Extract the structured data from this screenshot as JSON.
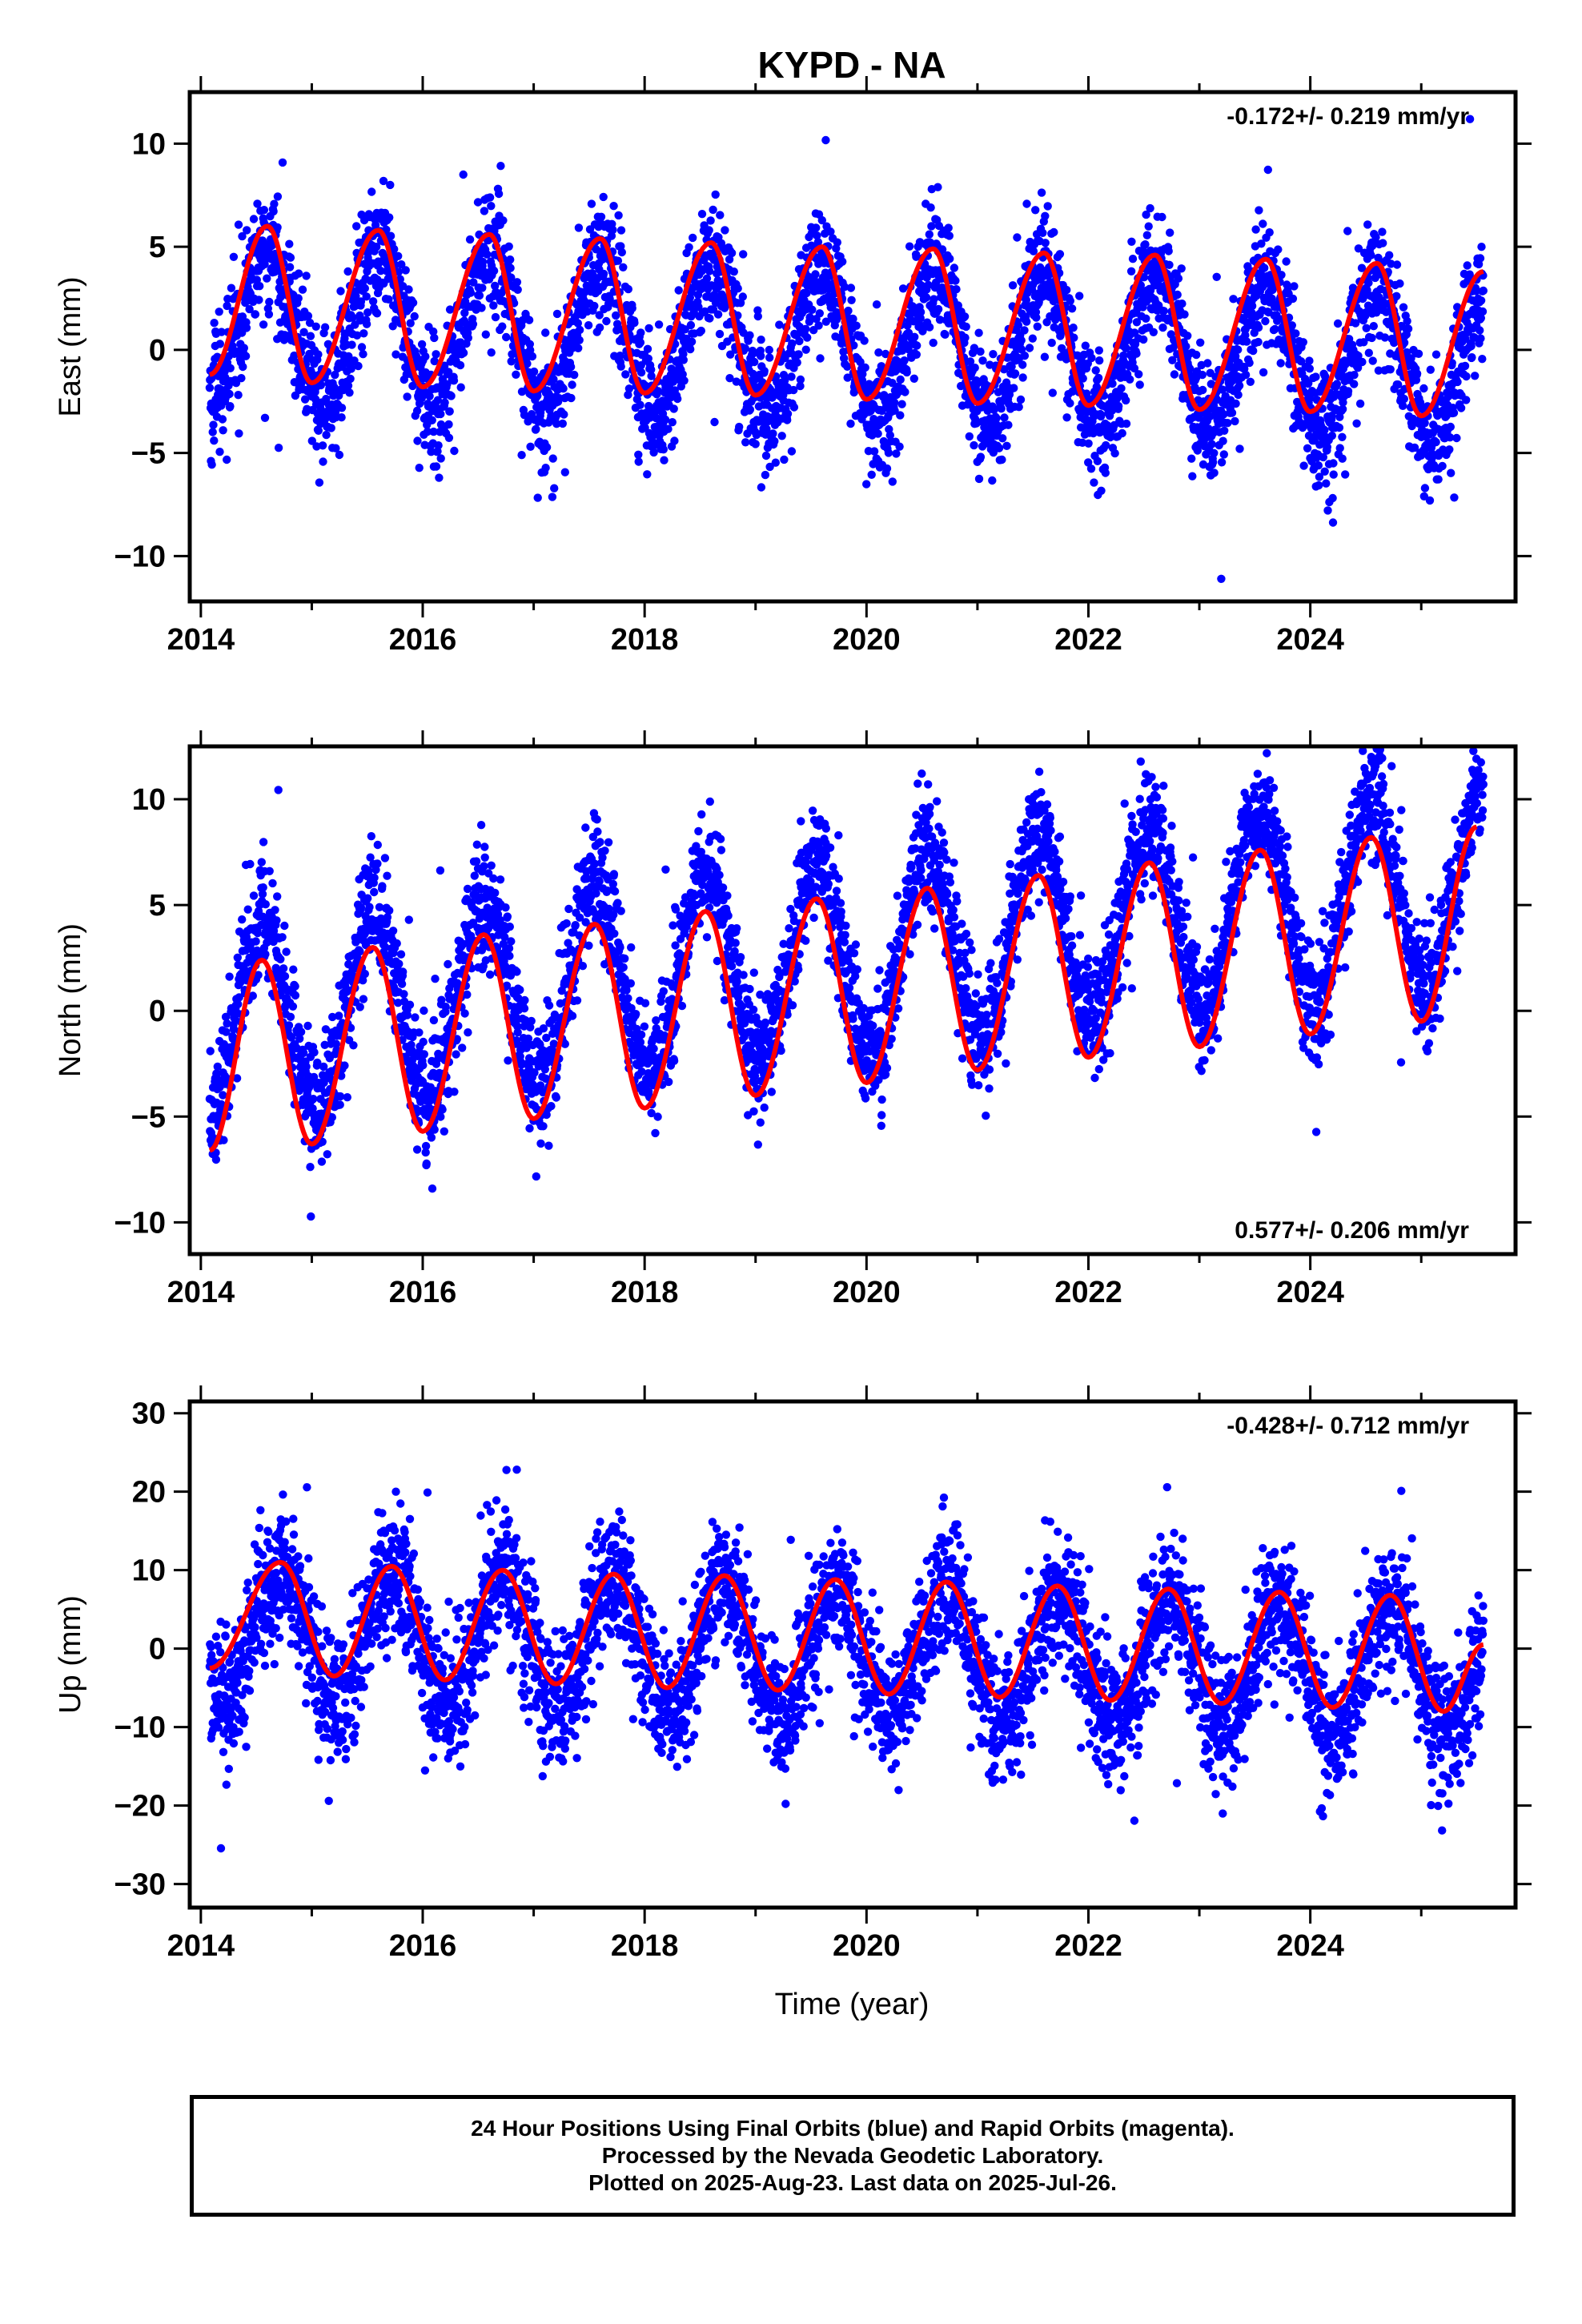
{
  "title": "KYPD - NA",
  "xlabel": "Time (year)",
  "colors": {
    "final_orbits": "#0000ff",
    "model_fit": "#ff0000",
    "frame": "#000000"
  },
  "footer": {
    "line1": "24 Hour Positions Using Final Orbits (blue) and Rapid Orbits (magenta).",
    "line2": "Processed by the Nevada Geodetic Laboratory.",
    "line3": "Plotted on 2025-Aug-23. Last data on 2025-Jul-26."
  },
  "chart_data": [
    {
      "type": "scatter",
      "name": "east",
      "ylabel": "East (mm)",
      "annotation": "-0.172+/- 0.219 mm/yr",
      "annotation_position": "top-right",
      "xlim": [
        2013.9,
        2025.85
      ],
      "ylim": [
        -12.2,
        12.5
      ],
      "xticks": [
        2014,
        2016,
        2018,
        2020,
        2022,
        2024
      ],
      "xtick_labels": [
        "2014",
        "2016",
        "2018",
        "2020",
        "2022",
        "2024"
      ],
      "yticks": [
        -10,
        -5,
        0,
        5,
        10
      ],
      "ytick_labels": [
        "−10",
        "−5",
        "0",
        "5",
        "10"
      ],
      "data_start": 2014.08,
      "data_end": 2025.56,
      "trend_mm_per_yr": -0.172,
      "fit": {
        "type": "line",
        "x": [
          2014.08,
          2014.6,
          2015.0,
          2015.6,
          2016.0,
          2016.6,
          2017.0,
          2017.6,
          2018.0,
          2018.6,
          2019.0,
          2019.6,
          2020.0,
          2020.6,
          2021.0,
          2021.6,
          2022.0,
          2022.6,
          2023.0,
          2023.6,
          2024.0,
          2024.6,
          2025.0,
          2025.56
        ],
        "y": [
          -1.2,
          6.0,
          -1.6,
          5.8,
          -1.8,
          5.6,
          -2.0,
          5.4,
          -2.1,
          5.2,
          -2.2,
          5.0,
          -2.4,
          4.9,
          -2.6,
          4.7,
          -2.7,
          4.6,
          -2.9,
          4.4,
          -3.0,
          4.2,
          -3.2,
          3.8
        ]
      },
      "seasonal": {
        "mean": 1.4,
        "amplitude": 3.6,
        "peak_year_fraction": 0.6
      },
      "noise_sigma": 1.5
    },
    {
      "type": "scatter",
      "name": "north",
      "ylabel": "North (mm)",
      "annotation": "0.577+/- 0.206 mm/yr",
      "annotation_position": "bottom-right",
      "xlim": [
        2013.9,
        2025.85
      ],
      "ylim": [
        -11.5,
        12.5
      ],
      "xticks": [
        2014,
        2016,
        2018,
        2020,
        2022,
        2024
      ],
      "xtick_labels": [
        "2014",
        "2016",
        "2018",
        "2020",
        "2022",
        "2024"
      ],
      "yticks": [
        -10,
        -5,
        0,
        5,
        10
      ],
      "ytick_labels": [
        "−10",
        "−5",
        "0",
        "5",
        "10"
      ],
      "data_start": 2014.08,
      "data_end": 2025.56,
      "trend_mm_per_yr": 0.577,
      "fit": {
        "type": "line",
        "x": [
          2014.08,
          2014.55,
          2015.0,
          2015.55,
          2016.0,
          2016.55,
          2017.0,
          2017.55,
          2018.0,
          2018.55,
          2019.0,
          2019.55,
          2020.0,
          2020.55,
          2021.0,
          2021.55,
          2022.0,
          2022.55,
          2023.0,
          2023.55,
          2024.0,
          2024.55,
          2025.0,
          2025.5
        ],
        "y": [
          -6.6,
          2.4,
          -6.3,
          3.0,
          -5.7,
          3.6,
          -5.1,
          4.1,
          -4.6,
          4.7,
          -4.0,
          5.3,
          -3.4,
          5.8,
          -2.8,
          6.4,
          -2.2,
          7.0,
          -1.7,
          7.6,
          -1.1,
          8.2,
          -0.5,
          8.7
        ]
      },
      "seasonal": {
        "mean": -0.7,
        "amplitude": 4.6,
        "peak_year_fraction": 0.55
      },
      "noise_sigma": 1.4
    },
    {
      "type": "scatter",
      "name": "up",
      "ylabel": "Up (mm)",
      "annotation": "-0.428+/- 0.712 mm/yr",
      "annotation_position": "top-right",
      "xlim": [
        2013.9,
        2025.85
      ],
      "ylim": [
        -33,
        31.5
      ],
      "xticks": [
        2014,
        2016,
        2018,
        2020,
        2022,
        2024
      ],
      "xtick_labels": [
        "2014",
        "2016",
        "2018",
        "2020",
        "2022",
        "2024"
      ],
      "yticks": [
        -30,
        -20,
        -10,
        0,
        10,
        20,
        30
      ],
      "ytick_labels": [
        "−30",
        "−20",
        "−10",
        "0",
        "10",
        "20",
        "30"
      ],
      "data_start": 2014.08,
      "data_end": 2025.56,
      "trend_mm_per_yr": -0.428,
      "fit": {
        "type": "line",
        "x": [
          2014.08,
          2014.72,
          2015.2,
          2015.72,
          2016.2,
          2016.72,
          2017.2,
          2017.72,
          2018.2,
          2018.72,
          2019.2,
          2019.72,
          2020.2,
          2020.72,
          2021.2,
          2021.72,
          2022.2,
          2022.72,
          2023.2,
          2023.72,
          2024.2,
          2024.72,
          2025.2,
          2025.56
        ],
        "y": [
          -2.5,
          11.0,
          -3.5,
          10.5,
          -4.0,
          10.0,
          -4.5,
          9.5,
          -5.0,
          9.3,
          -5.3,
          8.8,
          -5.8,
          8.5,
          -6.2,
          8.0,
          -6.6,
          7.6,
          -7.0,
          7.2,
          -7.5,
          6.8,
          -8.0,
          0.5
        ]
      },
      "seasonal": {
        "mean": 2.0,
        "amplitude": 8.2,
        "peak_year_fraction": 0.72
      },
      "noise_sigma": 4.2
    }
  ]
}
